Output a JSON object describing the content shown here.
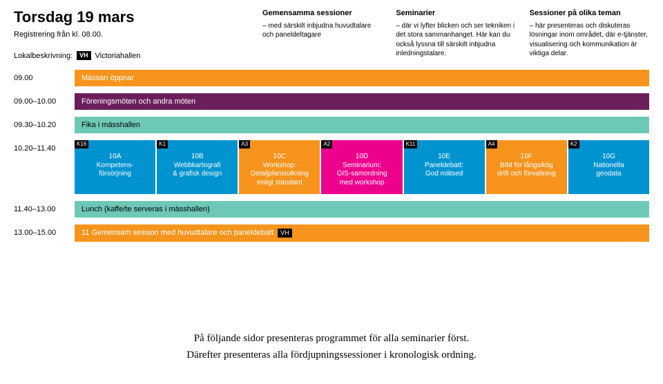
{
  "colors": {
    "orange": "#f7941d",
    "teal": "#6ec8b8",
    "magenta": "#ec008c",
    "blue": "#0093d0",
    "plum": "#6b1e5a"
  },
  "header": {
    "title": "Torsdag 19 mars",
    "registration": "Registrering från kl. 08.00.",
    "location_label": "Lokalbeskrivning:",
    "location_badge": "VH",
    "location_name": "Victoriahallen",
    "cols": [
      {
        "title": "Gemensamma sessioner",
        "text": "– med särskilt inbjudna huvudtalare och paneldeltagare"
      },
      {
        "title": "Seminarier",
        "text": "– där vi lyfter blicken och ser tekniken i det stora sammanhanget. Här kan du också lyssna till särskilt inbjudna inledningstalare."
      },
      {
        "title": "Sessioner på olika teman",
        "text": "– här presenteras och diskuteras lösningar inom området, där e-tjänster, visualisering och kommunikation är viktiga delar."
      }
    ]
  },
  "rows": [
    {
      "time": "09.00",
      "type": "bar",
      "label": "Mässan öppnar",
      "bg": "#f7941d",
      "light": false
    },
    {
      "time": "09.00–10.00",
      "type": "bar",
      "label": "Föreningsmöten och andra möten",
      "bg": "#6b1e5a",
      "light": false
    },
    {
      "time": "09.30–10.20",
      "type": "bar",
      "label": "Fika i mässhallen",
      "bg": "#6ec8b8",
      "light": true
    },
    {
      "time": "10.20–11.40",
      "type": "sessions",
      "sessions": [
        {
          "tag": "K16",
          "lines": [
            "10A",
            "Kompetens-",
            "försörjning"
          ],
          "bg": "#0093d0"
        },
        {
          "tag": "K1",
          "lines": [
            "10B",
            "Webbkartografi",
            "& grafisk design"
          ],
          "bg": "#0093d0"
        },
        {
          "tag": "A3",
          "lines": [
            "10C",
            "Workshop:",
            "Detaljplanstolkning",
            "enligt standard"
          ],
          "bg": "#f7941d"
        },
        {
          "tag": "A2",
          "lines": [
            "10D",
            "Seminarium:",
            "GIS-samordning",
            "med workshop"
          ],
          "bg": "#ec008c"
        },
        {
          "tag": "K11",
          "lines": [
            "10E",
            "Paneldebatt:",
            "God mätsed"
          ],
          "bg": "#0093d0"
        },
        {
          "tag": "A4",
          "lines": [
            "10F",
            "BIM för långsiktig",
            "drift och förvaltning"
          ],
          "bg": "#f7941d"
        },
        {
          "tag": "K2",
          "lines": [
            "10G",
            "Nationella",
            "geodata"
          ],
          "bg": "#0093d0"
        }
      ]
    },
    {
      "time": "11.40–13.00",
      "type": "bar",
      "label": "Lunch (kaffe/te serveras i mässhallen)",
      "bg": "#6ec8b8",
      "light": true
    },
    {
      "time": "13.00–15.00",
      "type": "bar",
      "label": "11 Gemensam session med huvudtalare och paneldebatt",
      "bg": "#f7941d",
      "light": false,
      "badge": "VH"
    }
  ],
  "footer": {
    "line1": "På följande sidor presenteras programmet för alla seminarier först.",
    "line2": "Därefter presenteras alla fördjupningssessioner i kronologisk ordning."
  }
}
